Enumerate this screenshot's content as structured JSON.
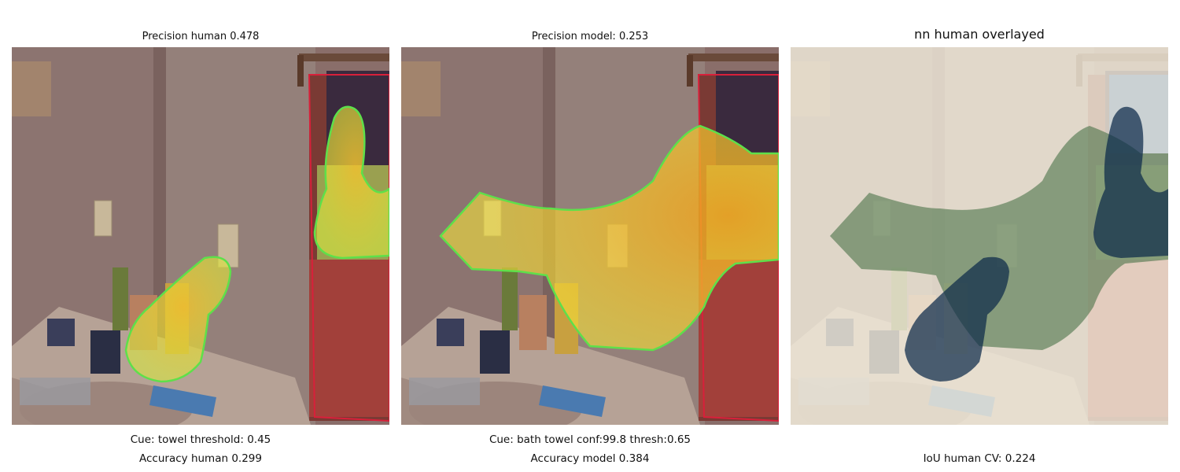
{
  "panels": [
    {
      "title": "Precision human 0.478",
      "caption_top": "Cue: towel threshold: 0.45",
      "caption_bottom": "Accuracy human 0.299"
    },
    {
      "title": "Precision model: 0.253",
      "caption_top": "Cue: bath towel conf:99.8 thresh:0.65",
      "caption_bottom": "Accuracy model 0.384"
    },
    {
      "title": "nn human overlayed",
      "caption_top": "",
      "caption_bottom": "IoU human CV: 0.224"
    }
  ],
  "colors": {
    "overlay_outline": "#5ee04a",
    "ground_truth_outline": "#d8203a",
    "heat_yellow": "#f2e23a",
    "human_mask": "#0d2a4a",
    "model_mask": "#3c6a3c"
  }
}
